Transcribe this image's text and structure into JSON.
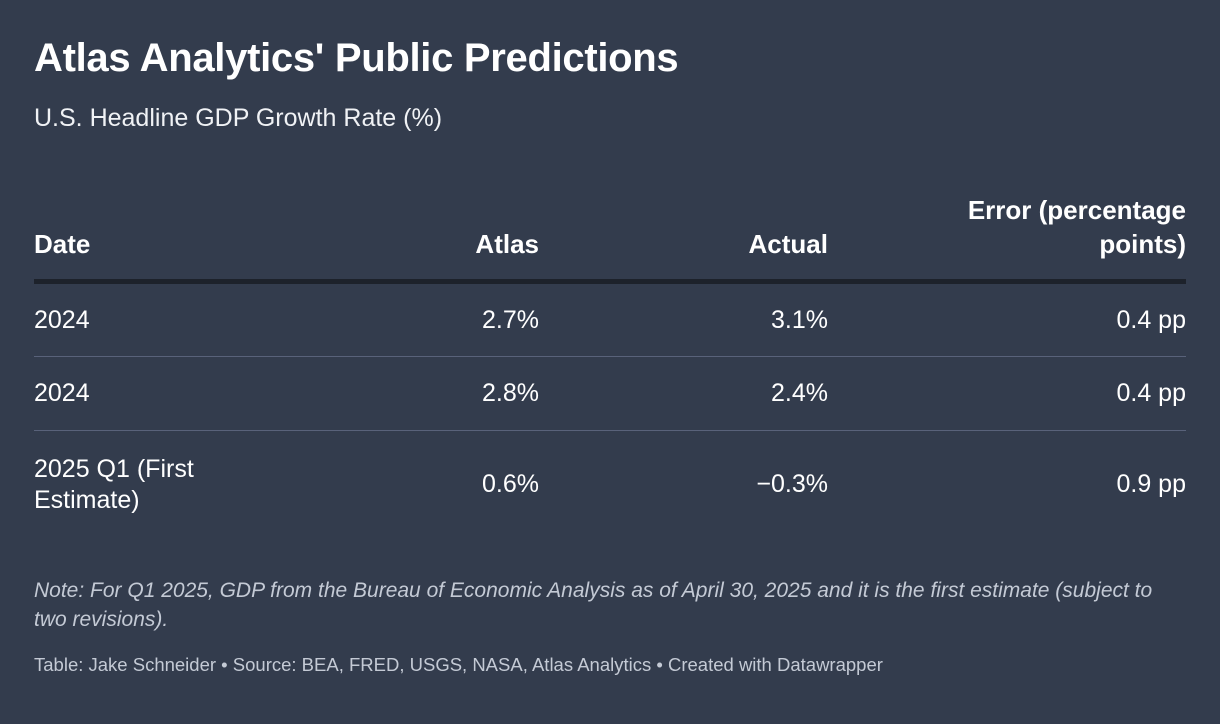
{
  "title": "Atlas Analytics' Public Predictions",
  "subtitle": "U.S. Headline GDP Growth Rate (%)",
  "chart_data": {
    "type": "table",
    "title": "Atlas Analytics' Public Predictions",
    "subtitle": "U.S. Headline GDP Growth Rate (%)",
    "columns": [
      "Date",
      "Atlas",
      "Actual",
      "Error (percentage points)"
    ],
    "rows": [
      [
        "2024",
        "2.7%",
        "3.1%",
        "0.4 pp"
      ],
      [
        "2024",
        "2.8%",
        "2.4%",
        "0.4 pp"
      ],
      [
        "2025 Q1 (First Estimate)",
        "0.6%",
        "−0.3%",
        "0.9 pp"
      ]
    ],
    "values": {
      "atlas": [
        2.7,
        2.8,
        0.6
      ],
      "actual": [
        3.1,
        2.4,
        -0.3
      ],
      "error_pp": [
        0.4,
        0.4,
        0.9
      ]
    }
  },
  "note": "Note: For Q1 2025, GDP from the Bureau of Economic Analysis as of April 30, 2025 and it is the first estimate (subject to two revisions).",
  "footer": "Table: Jake Schneider • Source: BEA, FRED, USGS, NASA, Atlas Analytics • Created with Datawrapper",
  "colors": {
    "background": "#333c4d",
    "text": "#ffffff",
    "muted_text": "#c4cad5",
    "header_rule": "#1d222b",
    "row_rule": "#59627a"
  }
}
